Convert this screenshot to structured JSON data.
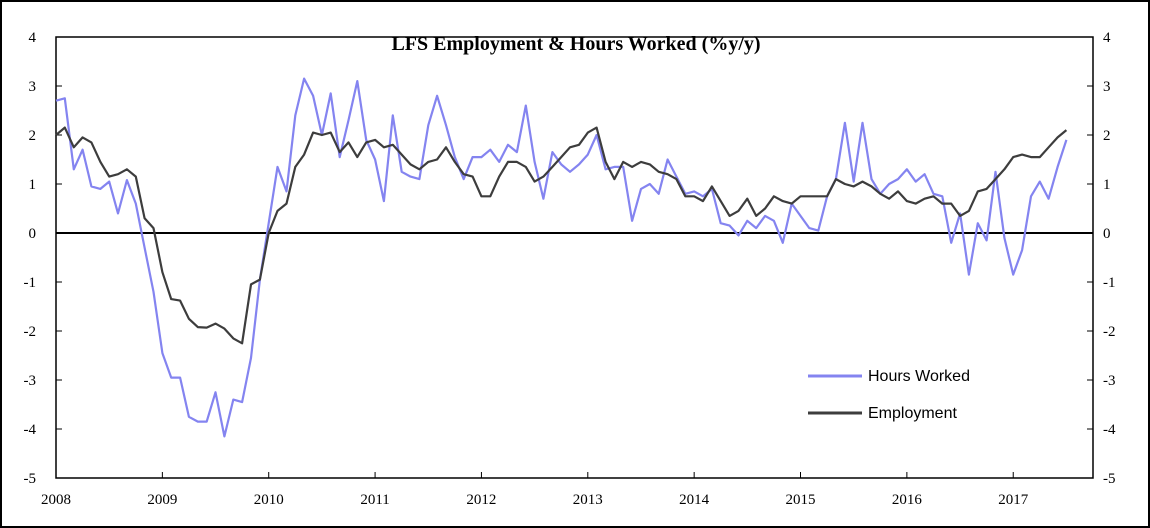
{
  "chart_data": {
    "type": "line",
    "title": "LFS Employment & Hours Worked (%y/y)",
    "xlabel": "",
    "ylabel": "",
    "ylim": [
      -5,
      4
    ],
    "y_ticks": [
      "4",
      "3",
      "2",
      "1",
      "0",
      "-1",
      "-2",
      "-3",
      "-4",
      "-5"
    ],
    "y_ticks_right": [
      "4",
      "3",
      "2",
      "1",
      "0",
      "-1",
      "-2",
      "-3",
      "-4",
      "-5"
    ],
    "x_ticks": [
      "2008",
      "2009",
      "2010",
      "2011",
      "2012",
      "2013",
      "2014",
      "2015",
      "2016",
      "2017"
    ],
    "xlim": [
      2008,
      2017.75
    ],
    "zero_line": true,
    "legend_position": "bottom-right",
    "series": [
      {
        "name": "Hours Worked",
        "color": "#8484f0",
        "points": [
          [
            2008.0,
            2.7
          ],
          [
            2008.083,
            2.75
          ],
          [
            2008.167,
            1.3
          ],
          [
            2008.25,
            1.7
          ],
          [
            2008.333,
            0.95
          ],
          [
            2008.417,
            0.9
          ],
          [
            2008.5,
            1.05
          ],
          [
            2008.583,
            0.4
          ],
          [
            2008.667,
            1.08
          ],
          [
            2008.75,
            0.6
          ],
          [
            2008.833,
            -0.3
          ],
          [
            2008.917,
            -1.2
          ],
          [
            2009.0,
            -2.45
          ],
          [
            2009.083,
            -2.95
          ],
          [
            2009.167,
            -2.95
          ],
          [
            2009.25,
            -3.75
          ],
          [
            2009.333,
            -3.85
          ],
          [
            2009.417,
            -3.85
          ],
          [
            2009.5,
            -3.25
          ],
          [
            2009.583,
            -4.15
          ],
          [
            2009.667,
            -3.4
          ],
          [
            2009.75,
            -3.45
          ],
          [
            2009.833,
            -2.55
          ],
          [
            2009.917,
            -0.95
          ],
          [
            2010.0,
            0.2
          ],
          [
            2010.083,
            1.35
          ],
          [
            2010.167,
            0.85
          ],
          [
            2010.25,
            2.4
          ],
          [
            2010.333,
            3.15
          ],
          [
            2010.417,
            2.8
          ],
          [
            2010.5,
            2.0
          ],
          [
            2010.583,
            2.85
          ],
          [
            2010.667,
            1.55
          ],
          [
            2010.75,
            2.3
          ],
          [
            2010.833,
            3.1
          ],
          [
            2010.917,
            1.9
          ],
          [
            2011.0,
            1.5
          ],
          [
            2011.083,
            0.65
          ],
          [
            2011.167,
            2.4
          ],
          [
            2011.25,
            1.25
          ],
          [
            2011.333,
            1.15
          ],
          [
            2011.417,
            1.1
          ],
          [
            2011.5,
            2.2
          ],
          [
            2011.583,
            2.8
          ],
          [
            2011.667,
            2.2
          ],
          [
            2011.75,
            1.55
          ],
          [
            2011.833,
            1.1
          ],
          [
            2011.917,
            1.55
          ],
          [
            2012.0,
            1.55
          ],
          [
            2012.083,
            1.7
          ],
          [
            2012.167,
            1.45
          ],
          [
            2012.25,
            1.8
          ],
          [
            2012.333,
            1.65
          ],
          [
            2012.417,
            2.6
          ],
          [
            2012.5,
            1.45
          ],
          [
            2012.583,
            0.7
          ],
          [
            2012.667,
            1.65
          ],
          [
            2012.75,
            1.4
          ],
          [
            2012.833,
            1.25
          ],
          [
            2012.917,
            1.4
          ],
          [
            2013.0,
            1.6
          ],
          [
            2013.083,
            2.0
          ],
          [
            2013.167,
            1.3
          ],
          [
            2013.25,
            1.35
          ],
          [
            2013.333,
            1.35
          ],
          [
            2013.417,
            0.25
          ],
          [
            2013.5,
            0.9
          ],
          [
            2013.583,
            1.0
          ],
          [
            2013.667,
            0.8
          ],
          [
            2013.75,
            1.5
          ],
          [
            2013.833,
            1.15
          ],
          [
            2013.917,
            0.8
          ],
          [
            2014.0,
            0.85
          ],
          [
            2014.083,
            0.75
          ],
          [
            2014.167,
            0.9
          ],
          [
            2014.25,
            0.2
          ],
          [
            2014.333,
            0.15
          ],
          [
            2014.417,
            -0.05
          ],
          [
            2014.5,
            0.25
          ],
          [
            2014.583,
            0.1
          ],
          [
            2014.667,
            0.35
          ],
          [
            2014.75,
            0.25
          ],
          [
            2014.833,
            -0.2
          ],
          [
            2014.917,
            0.6
          ],
          [
            2015.0,
            0.35
          ],
          [
            2015.083,
            0.1
          ],
          [
            2015.167,
            0.05
          ],
          [
            2015.25,
            0.75
          ],
          [
            2015.333,
            1.1
          ],
          [
            2015.417,
            2.25
          ],
          [
            2015.5,
            1.05
          ],
          [
            2015.583,
            2.25
          ],
          [
            2015.667,
            1.1
          ],
          [
            2015.75,
            0.8
          ],
          [
            2015.833,
            1.0
          ],
          [
            2015.917,
            1.1
          ],
          [
            2016.0,
            1.3
          ],
          [
            2016.083,
            1.05
          ],
          [
            2016.167,
            1.2
          ],
          [
            2016.25,
            0.8
          ],
          [
            2016.333,
            0.75
          ],
          [
            2016.417,
            -0.2
          ],
          [
            2016.5,
            0.4
          ],
          [
            2016.583,
            -0.85
          ],
          [
            2016.667,
            0.2
          ],
          [
            2016.75,
            -0.15
          ],
          [
            2016.833,
            1.25
          ],
          [
            2016.917,
            -0.1
          ],
          [
            2017.0,
            -0.85
          ],
          [
            2017.083,
            -0.35
          ],
          [
            2017.167,
            0.75
          ],
          [
            2017.25,
            1.05
          ],
          [
            2017.333,
            0.7
          ],
          [
            2017.417,
            1.35
          ],
          [
            2017.5,
            1.9
          ]
        ]
      },
      {
        "name": "Employment",
        "color": "#3d3d3d",
        "points": [
          [
            2008.0,
            2.0
          ],
          [
            2008.083,
            2.15
          ],
          [
            2008.167,
            1.75
          ],
          [
            2008.25,
            1.95
          ],
          [
            2008.333,
            1.85
          ],
          [
            2008.417,
            1.45
          ],
          [
            2008.5,
            1.15
          ],
          [
            2008.583,
            1.2
          ],
          [
            2008.667,
            1.3
          ],
          [
            2008.75,
            1.15
          ],
          [
            2008.833,
            0.3
          ],
          [
            2008.917,
            0.1
          ],
          [
            2009.0,
            -0.8
          ],
          [
            2009.083,
            -1.35
          ],
          [
            2009.167,
            -1.38
          ],
          [
            2009.25,
            -1.75
          ],
          [
            2009.333,
            -1.92
          ],
          [
            2009.417,
            -1.93
          ],
          [
            2009.5,
            -1.85
          ],
          [
            2009.583,
            -1.95
          ],
          [
            2009.667,
            -2.15
          ],
          [
            2009.75,
            -2.25
          ],
          [
            2009.833,
            -1.05
          ],
          [
            2009.917,
            -0.95
          ],
          [
            2010.0,
            0.0
          ],
          [
            2010.083,
            0.45
          ],
          [
            2010.167,
            0.6
          ],
          [
            2010.25,
            1.35
          ],
          [
            2010.333,
            1.6
          ],
          [
            2010.417,
            2.05
          ],
          [
            2010.5,
            2.0
          ],
          [
            2010.583,
            2.05
          ],
          [
            2010.667,
            1.65
          ],
          [
            2010.75,
            1.85
          ],
          [
            2010.833,
            1.55
          ],
          [
            2010.917,
            1.85
          ],
          [
            2011.0,
            1.9
          ],
          [
            2011.083,
            1.75
          ],
          [
            2011.167,
            1.8
          ],
          [
            2011.25,
            1.6
          ],
          [
            2011.333,
            1.4
          ],
          [
            2011.417,
            1.3
          ],
          [
            2011.5,
            1.45
          ],
          [
            2011.583,
            1.5
          ],
          [
            2011.667,
            1.75
          ],
          [
            2011.75,
            1.45
          ],
          [
            2011.833,
            1.2
          ],
          [
            2011.917,
            1.15
          ],
          [
            2012.0,
            0.75
          ],
          [
            2012.083,
            0.75
          ],
          [
            2012.167,
            1.15
          ],
          [
            2012.25,
            1.45
          ],
          [
            2012.333,
            1.45
          ],
          [
            2012.417,
            1.35
          ],
          [
            2012.5,
            1.05
          ],
          [
            2012.583,
            1.15
          ],
          [
            2012.667,
            1.35
          ],
          [
            2012.75,
            1.55
          ],
          [
            2012.833,
            1.75
          ],
          [
            2012.917,
            1.8
          ],
          [
            2013.0,
            2.05
          ],
          [
            2013.083,
            2.15
          ],
          [
            2013.167,
            1.45
          ],
          [
            2013.25,
            1.1
          ],
          [
            2013.333,
            1.45
          ],
          [
            2013.417,
            1.35
          ],
          [
            2013.5,
            1.45
          ],
          [
            2013.583,
            1.4
          ],
          [
            2013.667,
            1.25
          ],
          [
            2013.75,
            1.2
          ],
          [
            2013.833,
            1.1
          ],
          [
            2013.917,
            0.75
          ],
          [
            2014.0,
            0.75
          ],
          [
            2014.083,
            0.65
          ],
          [
            2014.167,
            0.95
          ],
          [
            2014.25,
            0.65
          ],
          [
            2014.333,
            0.35
          ],
          [
            2014.417,
            0.45
          ],
          [
            2014.5,
            0.7
          ],
          [
            2014.583,
            0.35
          ],
          [
            2014.667,
            0.5
          ],
          [
            2014.75,
            0.75
          ],
          [
            2014.833,
            0.65
          ],
          [
            2014.917,
            0.6
          ],
          [
            2015.0,
            0.75
          ],
          [
            2015.083,
            0.75
          ],
          [
            2015.167,
            0.75
          ],
          [
            2015.25,
            0.75
          ],
          [
            2015.333,
            1.1
          ],
          [
            2015.417,
            1.0
          ],
          [
            2015.5,
            0.95
          ],
          [
            2015.583,
            1.05
          ],
          [
            2015.667,
            0.95
          ],
          [
            2015.75,
            0.8
          ],
          [
            2015.833,
            0.7
          ],
          [
            2015.917,
            0.85
          ],
          [
            2016.0,
            0.65
          ],
          [
            2016.083,
            0.6
          ],
          [
            2016.167,
            0.7
          ],
          [
            2016.25,
            0.75
          ],
          [
            2016.333,
            0.6
          ],
          [
            2016.417,
            0.6
          ],
          [
            2016.5,
            0.35
          ],
          [
            2016.583,
            0.45
          ],
          [
            2016.667,
            0.85
          ],
          [
            2016.75,
            0.9
          ],
          [
            2016.833,
            1.1
          ],
          [
            2016.917,
            1.3
          ],
          [
            2017.0,
            1.55
          ],
          [
            2017.083,
            1.6
          ],
          [
            2017.167,
            1.55
          ],
          [
            2017.25,
            1.55
          ],
          [
            2017.333,
            1.75
          ],
          [
            2017.417,
            1.95
          ],
          [
            2017.5,
            2.1
          ]
        ]
      }
    ]
  }
}
